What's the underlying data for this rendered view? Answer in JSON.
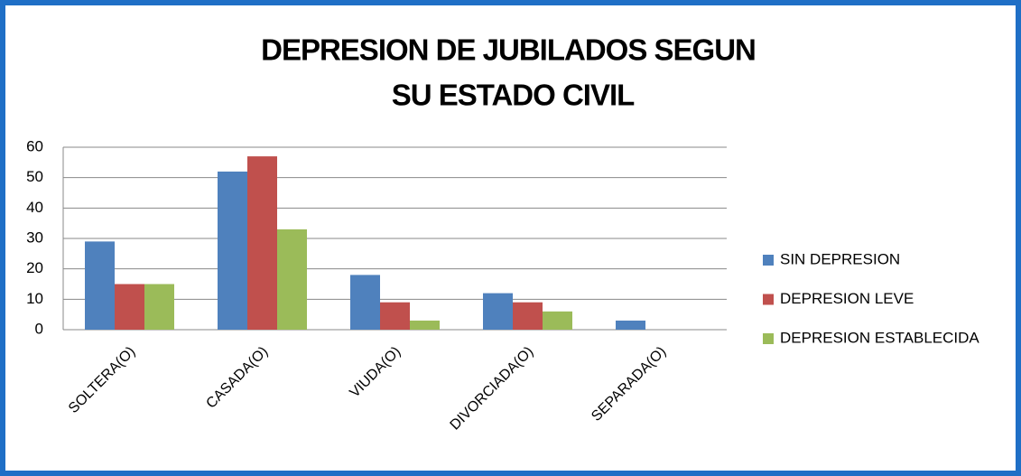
{
  "chart_data": {
    "type": "bar",
    "title": [
      "DEPRESION DE JUBILADOS SEGUN",
      "SU ESTADO CIVIL"
    ],
    "categories": [
      "SOLTERA(O)",
      "CASADA(O)",
      "VIUDA(O)",
      "DIVORCIADA(O)",
      "SEPARADA(O)"
    ],
    "series": [
      {
        "name": "SIN DEPRESION",
        "color": "#4f81bd",
        "values": [
          29,
          52,
          18,
          12,
          3
        ]
      },
      {
        "name": "DEPRESION LEVE",
        "color": "#c0504d",
        "values": [
          15,
          57,
          9,
          9,
          0
        ]
      },
      {
        "name": "DEPRESION ESTABLECIDA",
        "color": "#9bbb59",
        "values": [
          15,
          33,
          3,
          6,
          0
        ]
      }
    ],
    "ylim": [
      0,
      60
    ],
    "yticks": [
      0,
      10,
      20,
      30,
      40,
      50,
      60
    ],
    "grid": true,
    "legend": "right"
  }
}
